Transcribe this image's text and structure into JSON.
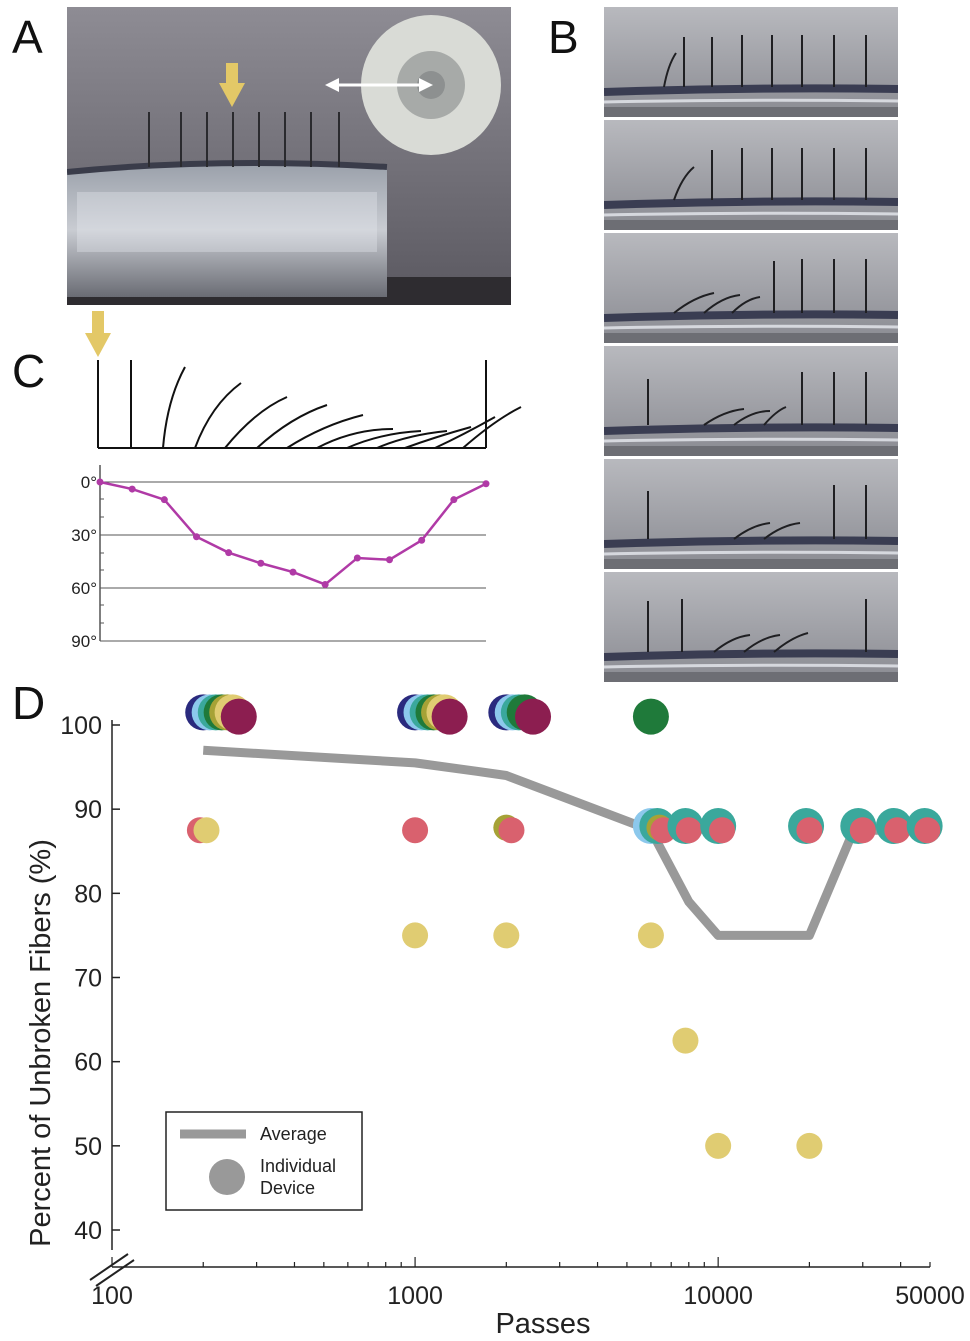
{
  "panels": {
    "a": {
      "letter": "A"
    },
    "b": {
      "letter": "B",
      "frames": 6
    },
    "c": {
      "letter": "C",
      "angle_ticks": [
        "0°",
        "30°",
        "60°",
        "90°"
      ],
      "deflection_deg": [
        0,
        4,
        10,
        31,
        40,
        46,
        51,
        58,
        43,
        44,
        33,
        10,
        1
      ]
    },
    "d": {
      "letter": "D"
    }
  },
  "chart_data": {
    "type": "scatter",
    "xlabel": "Passes",
    "ylabel": "Percent of Unbroken Fibers (%)",
    "x_scale": "log",
    "x_ticks": [
      "100",
      "1000",
      "10000",
      "50000"
    ],
    "y_ticks": [
      "40",
      "50",
      "60",
      "70",
      "80",
      "90",
      "100"
    ],
    "xlim": [
      100,
      50000
    ],
    "ylim": [
      40,
      100
    ],
    "legend": {
      "average_label": "Average",
      "individual_label": "Individual Device",
      "position": "bottom-left"
    },
    "colors": {
      "average": "#999999",
      "navy": "#2a2a7e",
      "lightblue": "#8cc8ec",
      "teal": "#3aa89c",
      "green": "#1f7a3a",
      "olive": "#a6a236",
      "tan": "#e0cc72",
      "pink": "#d9616e",
      "maroon": "#8c1e50"
    },
    "average": {
      "x": [
        200,
        1000,
        1600,
        2000,
        6000,
        8000,
        10000,
        20000,
        28000,
        50000
      ],
      "y": [
        97,
        95.5,
        94.5,
        94,
        87.5,
        79,
        75,
        75,
        87.5,
        87.5
      ]
    },
    "points": [
      {
        "x": 200,
        "y": 101.5,
        "color": "navy",
        "size": "big"
      },
      {
        "x": 210,
        "y": 101.5,
        "color": "lightblue",
        "size": "big"
      },
      {
        "x": 220,
        "y": 101.5,
        "color": "teal",
        "size": "big"
      },
      {
        "x": 230,
        "y": 101.5,
        "color": "green",
        "size": "big"
      },
      {
        "x": 240,
        "y": 101.5,
        "color": "olive",
        "size": "big"
      },
      {
        "x": 250,
        "y": 101.5,
        "color": "tan",
        "size": "big"
      },
      {
        "x": 262,
        "y": 101,
        "color": "maroon",
        "size": "big"
      },
      {
        "x": 195,
        "y": 87.5,
        "color": "pink",
        "size": "small"
      },
      {
        "x": 205,
        "y": 87.5,
        "color": "tan",
        "size": "small"
      },
      {
        "x": 1000,
        "y": 101.5,
        "color": "navy",
        "size": "big"
      },
      {
        "x": 1050,
        "y": 101.5,
        "color": "lightblue",
        "size": "big"
      },
      {
        "x": 1100,
        "y": 101.5,
        "color": "teal",
        "size": "big"
      },
      {
        "x": 1150,
        "y": 101.5,
        "color": "green",
        "size": "big"
      },
      {
        "x": 1200,
        "y": 101.5,
        "color": "olive",
        "size": "big"
      },
      {
        "x": 1250,
        "y": 101.5,
        "color": "tan",
        "size": "big"
      },
      {
        "x": 1300,
        "y": 101,
        "color": "maroon",
        "size": "big"
      },
      {
        "x": 1000,
        "y": 87.5,
        "color": "pink",
        "size": "small"
      },
      {
        "x": 1000,
        "y": 75,
        "color": "tan",
        "size": "small"
      },
      {
        "x": 2000,
        "y": 101.5,
        "color": "navy",
        "size": "big"
      },
      {
        "x": 2100,
        "y": 101.5,
        "color": "lightblue",
        "size": "big"
      },
      {
        "x": 2200,
        "y": 101.5,
        "color": "teal",
        "size": "big"
      },
      {
        "x": 2300,
        "y": 101.5,
        "color": "green",
        "size": "big"
      },
      {
        "x": 2450,
        "y": 101,
        "color": "maroon",
        "size": "big"
      },
      {
        "x": 2000,
        "y": 87.8,
        "color": "olive",
        "size": "small"
      },
      {
        "x": 2080,
        "y": 87.5,
        "color": "pink",
        "size": "small"
      },
      {
        "x": 2000,
        "y": 75,
        "color": "tan",
        "size": "small"
      },
      {
        "x": 6000,
        "y": 101,
        "color": "green",
        "size": "big"
      },
      {
        "x": 6000,
        "y": 88,
        "color": "lightblue",
        "size": "big"
      },
      {
        "x": 6300,
        "y": 88,
        "color": "teal",
        "size": "big"
      },
      {
        "x": 6400,
        "y": 87.8,
        "color": "olive",
        "size": "small"
      },
      {
        "x": 6600,
        "y": 87.5,
        "color": "pink",
        "size": "small"
      },
      {
        "x": 6000,
        "y": 75,
        "color": "tan",
        "size": "small"
      },
      {
        "x": 7800,
        "y": 88,
        "color": "teal",
        "size": "big"
      },
      {
        "x": 8000,
        "y": 87.5,
        "color": "pink",
        "size": "small"
      },
      {
        "x": 7800,
        "y": 62.5,
        "color": "tan",
        "size": "small"
      },
      {
        "x": 10000,
        "y": 88,
        "color": "teal",
        "size": "big"
      },
      {
        "x": 10300,
        "y": 87.5,
        "color": "pink",
        "size": "small"
      },
      {
        "x": 10000,
        "y": 50,
        "color": "tan",
        "size": "small"
      },
      {
        "x": 19500,
        "y": 88,
        "color": "teal",
        "size": "big"
      },
      {
        "x": 20000,
        "y": 87.5,
        "color": "pink",
        "size": "small"
      },
      {
        "x": 20000,
        "y": 50,
        "color": "tan",
        "size": "small"
      },
      {
        "x": 29000,
        "y": 88,
        "color": "teal",
        "size": "big"
      },
      {
        "x": 30000,
        "y": 87.5,
        "color": "pink",
        "size": "small"
      },
      {
        "x": 38000,
        "y": 88,
        "color": "teal",
        "size": "big"
      },
      {
        "x": 39000,
        "y": 87.5,
        "color": "pink",
        "size": "small"
      },
      {
        "x": 48000,
        "y": 88,
        "color": "teal",
        "size": "big"
      },
      {
        "x": 49000,
        "y": 87.5,
        "color": "pink",
        "size": "small"
      }
    ]
  }
}
